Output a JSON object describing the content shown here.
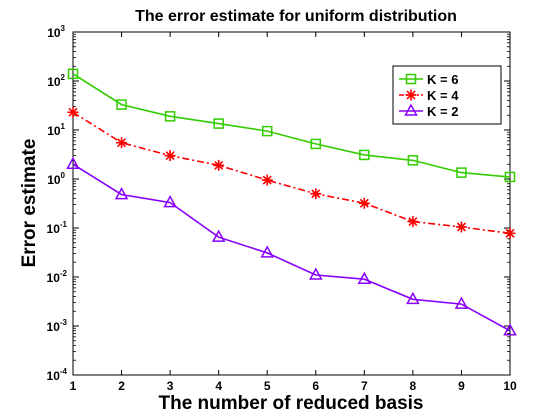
{
  "chart_data": {
    "type": "line",
    "title": "The error estimate for uniform distribution",
    "xlabel": "The number of reduced basis",
    "ylabel": "Error estimate",
    "x": [
      1,
      2,
      3,
      4,
      5,
      6,
      7,
      8,
      9,
      10
    ],
    "xlim": [
      1,
      10
    ],
    "ylim": [
      0.0001,
      1000
    ],
    "yscale": "log",
    "x_ticks": [
      "1",
      "2",
      "3",
      "4",
      "5",
      "6",
      "7",
      "8",
      "9",
      "10"
    ],
    "y_ticks": [
      {
        "base": "10",
        "exp": "3"
      },
      {
        "base": "10",
        "exp": "2"
      },
      {
        "base": "10",
        "exp": "1"
      },
      {
        "base": "10",
        "exp": "0"
      },
      {
        "base": "10",
        "exp": "-1"
      },
      {
        "base": "10",
        "exp": "-2"
      },
      {
        "base": "10",
        "exp": "-3"
      },
      {
        "base": "10",
        "exp": "-4"
      }
    ],
    "grid": false,
    "legend_position": "top-right",
    "series": [
      {
        "name": "K = 6",
        "color": "#33cc00",
        "marker": "square",
        "line_style": "solid",
        "values": [
          140,
          33,
          19,
          13.5,
          9.5,
          5.2,
          3.1,
          2.4,
          1.35,
          1.1
        ]
      },
      {
        "name": "K = 4",
        "color": "#ff0000",
        "marker": "asterisk",
        "line_style": "dashdot",
        "values": [
          23,
          5.5,
          3.0,
          1.9,
          0.95,
          0.5,
          0.32,
          0.135,
          0.105,
          0.078
        ]
      },
      {
        "name": "K = 2",
        "color": "#8800ff",
        "marker": "triangle",
        "line_style": "solid",
        "values": [
          2.0,
          0.48,
          0.33,
          0.065,
          0.031,
          0.011,
          0.009,
          0.0035,
          0.0028,
          0.0008
        ]
      }
    ]
  }
}
